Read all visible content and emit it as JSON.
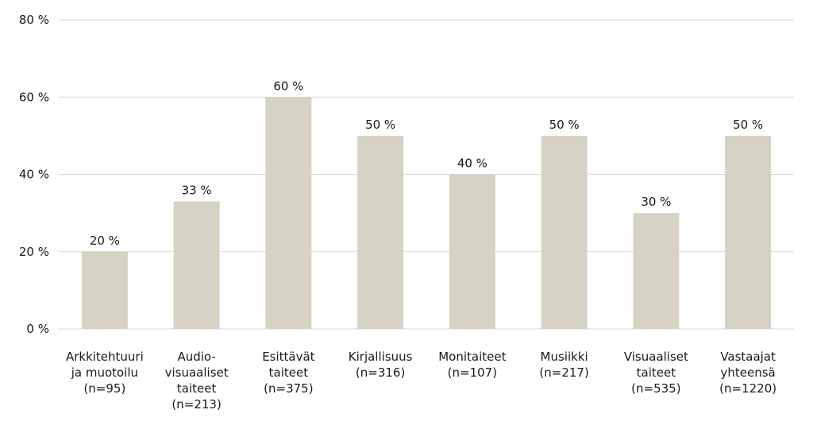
{
  "chart_data": {
    "type": "bar",
    "title": "",
    "xlabel": "",
    "ylabel": "",
    "ylim": [
      0,
      80
    ],
    "grid": true,
    "y_ticks": [
      {
        "value": 0,
        "label": "0 %"
      },
      {
        "value": 20,
        "label": "20 %"
      },
      {
        "value": 40,
        "label": "40 %"
      },
      {
        "value": 60,
        "label": "60 %"
      },
      {
        "value": 80,
        "label": "80 %"
      }
    ],
    "categories": [
      [
        "Arkkitehtuuri",
        "ja muotoilu",
        "(n=95)"
      ],
      [
        "Audio-",
        "visuaaliset",
        "taiteet",
        "(n=213)"
      ],
      [
        "Esittävät",
        "taiteet",
        "(n=375)"
      ],
      [
        "Kirjallisuus",
        "(n=316)"
      ],
      [
        "Monitaiteet",
        "(n=107)"
      ],
      [
        "Musiikki",
        "(n=217)"
      ],
      [
        "Visuaaliset",
        "taiteet",
        "(n=535)"
      ],
      [
        "Vastaajat",
        "yhteensä",
        "(n=1220)"
      ]
    ],
    "values": [
      20,
      33,
      60,
      50,
      40,
      50,
      30,
      50
    ],
    "value_labels": [
      "20 %",
      "33 %",
      "60 %",
      "50 %",
      "40 %",
      "50 %",
      "30 %",
      "50 %"
    ],
    "bar_color": "#d6d3c4",
    "grid_color": "#d9d9d9",
    "text_color": "#1a1a1a"
  }
}
